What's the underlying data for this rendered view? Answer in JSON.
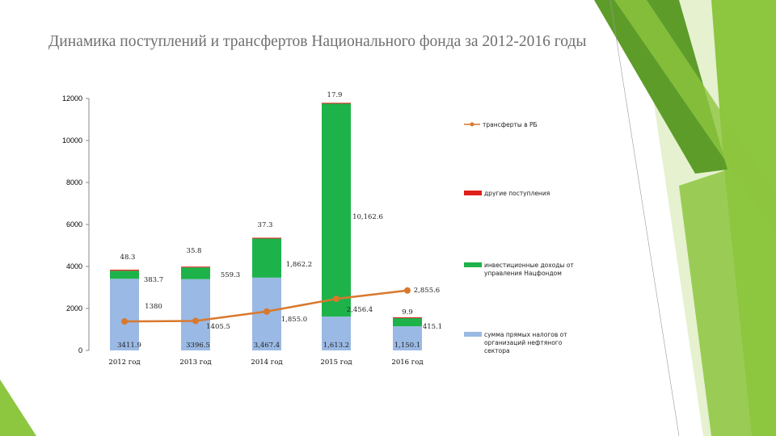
{
  "title": "Динамика поступлений и трансфертов Национального фонда за 2012-2016 годы",
  "colors": {
    "oil_taxes": "#9ab9e4",
    "investment_income": "#1db34a",
    "other_receipts": "#e0201b",
    "transfers": "#d9782d",
    "green_dark": "#5e9c2a",
    "green_mid": "#8dc63f",
    "green_light": "#cfe6a8"
  },
  "chart_data": {
    "type": "bar",
    "stacked": true,
    "categories": [
      "2012 год",
      "2013 год",
      "2014 год",
      "2015 год",
      "2016 год"
    ],
    "y_ticks": [
      "0",
      "2000",
      "4000",
      "6000",
      "8000",
      "10000",
      "12000"
    ],
    "ylim": [
      0,
      12000
    ],
    "series": [
      {
        "name": "сумма прямых налогов от организаций нефтяного сектора",
        "key": "oil_taxes",
        "values": [
          3411.9,
          3396.5,
          3467.4,
          1613.2,
          1150.1
        ],
        "labels": [
          "3411.9",
          "3396.5",
          "3,467.4",
          "1,613.2",
          "1,150.1"
        ]
      },
      {
        "name": "инвестиционные доходы от управления Нацфондом",
        "key": "investment_income",
        "values": [
          383.7,
          559.3,
          1862.2,
          10162.6,
          415.1
        ],
        "labels": [
          "383.7",
          "559.3",
          "1,862.2",
          "10,162.6",
          "415.1"
        ]
      },
      {
        "name": "другие поступления",
        "key": "other_receipts",
        "values": [
          48.3,
          35.8,
          37.3,
          17.9,
          9.9
        ],
        "labels": [
          "48.3",
          "35.8",
          "37.3",
          "17.9",
          "9.9"
        ]
      }
    ],
    "line_series": {
      "name": "трансферты в РБ",
      "key": "transfers",
      "values": [
        1380,
        1405.5,
        1855.0,
        2456.4,
        2855.6
      ],
      "labels": [
        "1380",
        "1405.5",
        "1,855.0",
        "2,456.4",
        "2,855.6"
      ]
    },
    "legend_position": "right",
    "grid": false
  }
}
